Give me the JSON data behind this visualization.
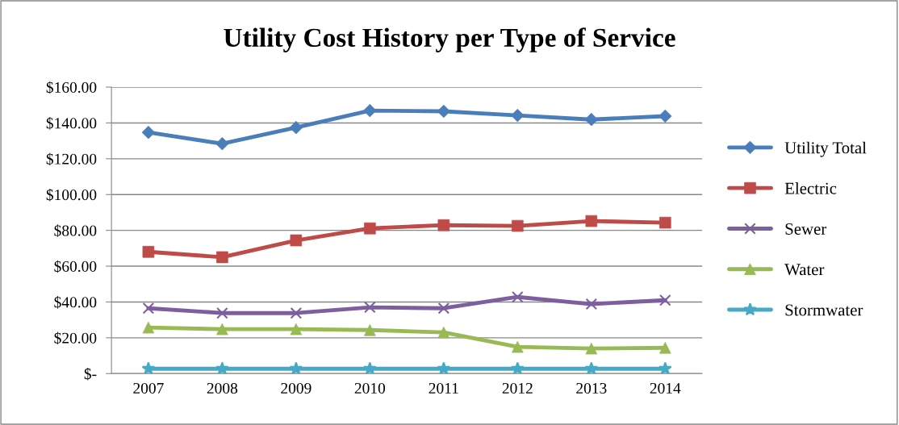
{
  "chart_data": {
    "type": "line",
    "title": "Utility Cost History per Type of Service",
    "categories": [
      "2007",
      "2008",
      "2009",
      "2010",
      "2011",
      "2012",
      "2013",
      "2014"
    ],
    "series": [
      {
        "name": "Utility Total",
        "color": "#4a7ebb",
        "marker": "diamond",
        "values": [
          134.7,
          128.4,
          137.4,
          146.9,
          146.5,
          144.2,
          141.9,
          143.8
        ]
      },
      {
        "name": "Electric",
        "color": "#be4b48",
        "marker": "square",
        "values": [
          68,
          65,
          74.4,
          81.1,
          82.9,
          82.5,
          85.2,
          84.3
        ]
      },
      {
        "name": "Sewer",
        "color": "#7d5fa0",
        "marker": "cross",
        "values": [
          36.5,
          33.8,
          33.8,
          37,
          36.5,
          42.8,
          38.8,
          41
        ]
      },
      {
        "name": "Water",
        "color": "#98b954",
        "marker": "triangle",
        "values": [
          25.7,
          24.8,
          24.8,
          24.3,
          23,
          14.9,
          14,
          14.4
        ]
      },
      {
        "name": "Stormwater",
        "color": "#46aac5",
        "marker": "star",
        "values": [
          2.7,
          2.7,
          2.7,
          2.7,
          2.7,
          2.7,
          2.7,
          2.7
        ]
      }
    ],
    "ylim": [
      0,
      160
    ],
    "yticks": [
      {
        "value": 0,
        "label": "$-"
      },
      {
        "value": 20,
        "label": "$20.00"
      },
      {
        "value": 40,
        "label": "$40.00"
      },
      {
        "value": 60,
        "label": "$60.00"
      },
      {
        "value": 80,
        "label": "$80.00"
      },
      {
        "value": 100,
        "label": "$100.00"
      },
      {
        "value": 120,
        "label": "$120.00"
      },
      {
        "value": 140,
        "label": "$140.00"
      },
      {
        "value": 160,
        "label": "$160.00"
      }
    ],
    "grid": "y",
    "legend": "right",
    "line_style": "solid"
  }
}
